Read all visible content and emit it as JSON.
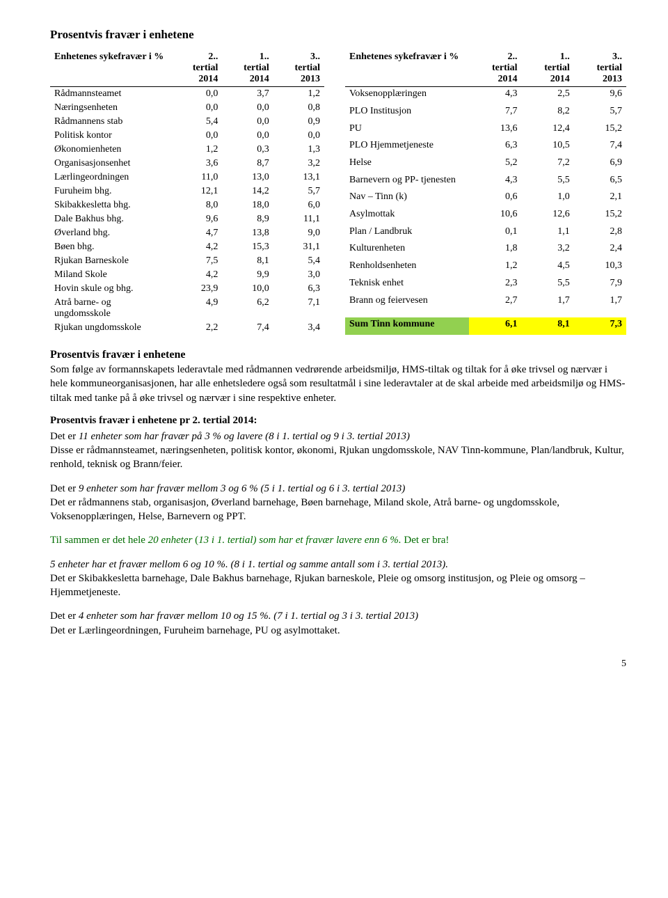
{
  "title": "Prosentvis fravær i enhetene",
  "left_table": {
    "header_label": "Enhetenes sykefravær i %",
    "columns": [
      "2. tertial 2014",
      "1. tertial 2014",
      "3. tertial 2013"
    ],
    "rows": [
      [
        "Rådmannsteamet",
        "0,0",
        "3,7",
        "1,2"
      ],
      [
        "Næringsenheten",
        "0,0",
        "0,0",
        "0,8"
      ],
      [
        "Rådmannens stab",
        "5,4",
        "0,0",
        "0,9"
      ],
      [
        "Politisk kontor",
        "0,0",
        "0,0",
        "0,0"
      ],
      [
        "Økonomienheten",
        "1,2",
        "0,3",
        "1,3"
      ],
      [
        "Organisasjonsenhet",
        "3,6",
        "8,7",
        "3,2"
      ],
      [
        "Lærlingeordningen",
        "11,0",
        "13,0",
        "13,1"
      ],
      [
        "Furuheim bhg.",
        "12,1",
        "14,2",
        "5,7"
      ],
      [
        "Skibakkesletta bhg.",
        "8,0",
        "18,0",
        "6,0"
      ],
      [
        "Dale Bakhus bhg.",
        "9,6",
        "8,9",
        "11,1"
      ],
      [
        "Øverland bhg.",
        "4,7",
        "13,8",
        "9,0"
      ],
      [
        "Bøen bhg.",
        "4,2",
        "15,3",
        "31,1"
      ],
      [
        "Rjukan Barneskole",
        "7,5",
        "8,1",
        "5,4"
      ],
      [
        "Miland Skole",
        "4,2",
        "9,9",
        "3,0"
      ],
      [
        "Hovin skule og bhg.",
        "23,9",
        "10,0",
        "6,3"
      ],
      [
        "Atrå barne- og ungdomsskole",
        "4,9",
        "6,2",
        "7,1"
      ],
      [
        "Rjukan ungdomsskole",
        "2,2",
        "7,4",
        "3,4"
      ]
    ]
  },
  "right_table": {
    "header_label": "Enhetenes sykefravær i %",
    "columns": [
      "2. tertial 2014",
      "1. tertial 2014",
      "3. tertial 2013"
    ],
    "rows": [
      [
        "Voksenopplæringen",
        "4,3",
        "2,5",
        "9,6"
      ],
      [
        "PLO Institusjon",
        "7,7",
        "8,2",
        "5,7"
      ],
      [
        "PU",
        "13,6",
        "12,4",
        "15,2"
      ],
      [
        "PLO Hjemmetjeneste",
        "6,3",
        "10,5",
        "7,4"
      ],
      [
        "Helse",
        "5,2",
        "7,2",
        "6,9"
      ],
      [
        "Barnevern og PP- tjenesten",
        "4,3",
        "5,5",
        "6,5"
      ],
      [
        "Nav – Tinn (k)",
        "0,6",
        "1,0",
        "2,1"
      ],
      [
        "Asylmottak",
        "10,6",
        "12,6",
        "15,2"
      ],
      [
        "Plan / Landbruk",
        "0,1",
        "1,1",
        "2,8"
      ],
      [
        "Kulturenheten",
        "1,8",
        "3,2",
        "2,4"
      ],
      [
        "Renholdsenheten",
        "1,2",
        "4,5",
        "10,3"
      ],
      [
        "Teknisk enhet",
        "2,3",
        "5,5",
        "7,9"
      ],
      [
        "Brann og feiervesen",
        "2,7",
        "1,7",
        "1,7"
      ]
    ],
    "sum_row": [
      "Sum Tinn kommune",
      "6,1",
      "8,1",
      "7,3"
    ],
    "highlight": {
      "label_bg": "#92d050",
      "num_bg": "#ffff00"
    }
  },
  "body": {
    "section1_title": "Prosentvis fravær i enhetene",
    "section1_text": "Som følge av formannskapets lederavtale med rådmannen vedrørende arbeidsmiljø, HMS-tiltak og tiltak for å øke trivsel og nærvær i hele kommuneorganisasjonen, har alle enhetsledere også som resultatmål i sine lederavtaler at de skal arbeide med arbeidsmiljø og HMS-tiltak med tanke på å øke trivsel og nærvær i sine respektive enheter.",
    "section2_title": "Prosentvis fravær i enhetene pr 2. tertial 2014:",
    "p1_lead": "Det er ",
    "p1_ital": "11 enheter som har fravær på 3 % og lavere (8 i 1. tertial og 9 i 3. tertial 2013)",
    "p1_body": "Disse er rådmannsteamet, næringsenheten, politisk kontor, økonomi, Rjukan ungdomsskole, NAV Tinn-kommune, Plan/landbruk, Kultur, renhold, teknisk og Brann/feier.",
    "p2_lead": "Det er ",
    "p2_ital": "9 enheter som har fravær mellom 3 og 6 % (5 i 1. tertial og 6 i 3. tertial 2013)",
    "p2_body": "Det er rådmannens stab, organisasjon, Øverland barnehage, Bøen barnehage, Miland skole, Atrå barne- og ungdomsskole, Voksenopplæringen, Helse, Barnevern og PPT.",
    "green_pre": "Til sammen er det hele ",
    "green_ital": "20 enheter",
    "green_mid": " (",
    "green_ital2": "13 i 1. tertial)  som har et fravær lavere enn 6 %.",
    "green_tail": " Det er bra!",
    "p3_ital": "5 enheter har et fravær mellom 6 og 10 %.   (8 i 1. tertial og samme antall som i 3. tertial 2013).",
    "p3_body": "Det er Skibakkesletta barnehage, Dale Bakhus barnehage, Rjukan barneskole, Pleie og omsorg institusjon, og Pleie og omsorg – Hjemmetjeneste.",
    "p4_lead": "Det er ",
    "p4_ital": "4 enheter som har fravær mellom 10 og 15 %. (7 i 1. tertial og 3 i 3. tertial 2013)",
    "p4_body": "Det er Lærlingeordningen, Furuheim barnehage, PU og asylmottaket."
  },
  "page_number": "5",
  "colors": {
    "green_text": "#006c00"
  }
}
